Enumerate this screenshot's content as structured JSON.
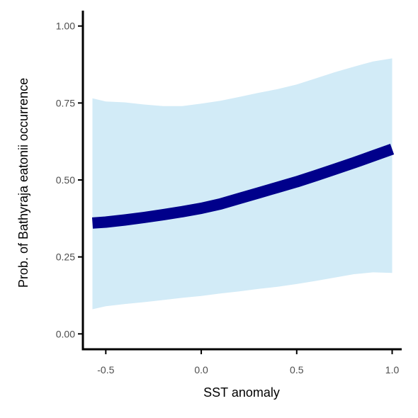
{
  "chart_data": {
    "type": "line",
    "xlabel": "SST anomaly",
    "ylabel": "Prob. of  Bathyraja eatonii  occurrence",
    "xlim": [
      -0.62,
      1.05
    ],
    "ylim": [
      -0.05,
      1.05
    ],
    "x_ticks": [
      -0.5,
      0.0,
      0.5,
      1.0
    ],
    "x_tick_labels": [
      "-0.5",
      "0.0",
      "0.5",
      "1.0"
    ],
    "y_ticks": [
      0.0,
      0.25,
      0.5,
      0.75,
      1.0
    ],
    "y_tick_labels": [
      "0.00",
      "0.25",
      "0.50",
      "0.75",
      "1.00"
    ],
    "grid": false,
    "legend": "none",
    "x": [
      -0.57,
      -0.5,
      -0.4,
      -0.3,
      -0.2,
      -0.1,
      0.0,
      0.1,
      0.2,
      0.3,
      0.4,
      0.5,
      0.6,
      0.7,
      0.8,
      0.9,
      1.0
    ],
    "series": [
      {
        "values": [
          0.36,
          0.363,
          0.37,
          0.378,
          0.387,
          0.397,
          0.408,
          0.422,
          0.44,
          0.458,
          0.476,
          0.494,
          0.514,
          0.535,
          0.556,
          0.578,
          0.6
        ],
        "lower": [
          0.08,
          0.09,
          0.097,
          0.103,
          0.11,
          0.117,
          0.123,
          0.131,
          0.138,
          0.146,
          0.153,
          0.162,
          0.172,
          0.183,
          0.194,
          0.2,
          0.198
        ],
        "upper": [
          0.765,
          0.755,
          0.752,
          0.745,
          0.74,
          0.74,
          0.748,
          0.757,
          0.77,
          0.783,
          0.795,
          0.81,
          0.83,
          0.85,
          0.868,
          0.885,
          0.895
        ]
      }
    ],
    "colors": {
      "line": "#00008b",
      "ribbon": "#d2ebf7",
      "axis": "#000000",
      "tick_text": "#4d4d4d"
    }
  }
}
